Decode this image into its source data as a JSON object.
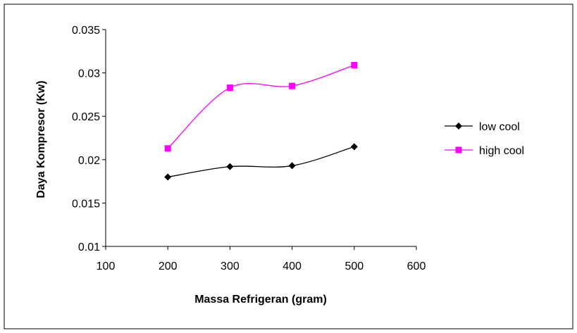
{
  "chart_data": {
    "type": "line",
    "title": "",
    "xlabel": "Massa Refrigeran (gram)",
    "ylabel": "Daya Kompresor (Kw)",
    "xlim": [
      100,
      600
    ],
    "ylim": [
      0.01,
      0.035
    ],
    "x_ticks": [
      "100",
      "200",
      "300",
      "400",
      "500",
      "600"
    ],
    "y_ticks": [
      "0.01",
      "0.015",
      "0.02",
      "0.025",
      "0.03",
      "0.035"
    ],
    "x": [
      200,
      300,
      400,
      500
    ],
    "grid": false,
    "legend_position": "right",
    "series": [
      {
        "name": "low cool",
        "marker": "diamond",
        "color": "#000000",
        "values": [
          0.018,
          0.0192,
          0.0193,
          0.0215
        ]
      },
      {
        "name": "high cool",
        "marker": "square",
        "color": "#FF00FF",
        "values": [
          0.0213,
          0.0283,
          0.0285,
          0.0309
        ]
      }
    ]
  }
}
